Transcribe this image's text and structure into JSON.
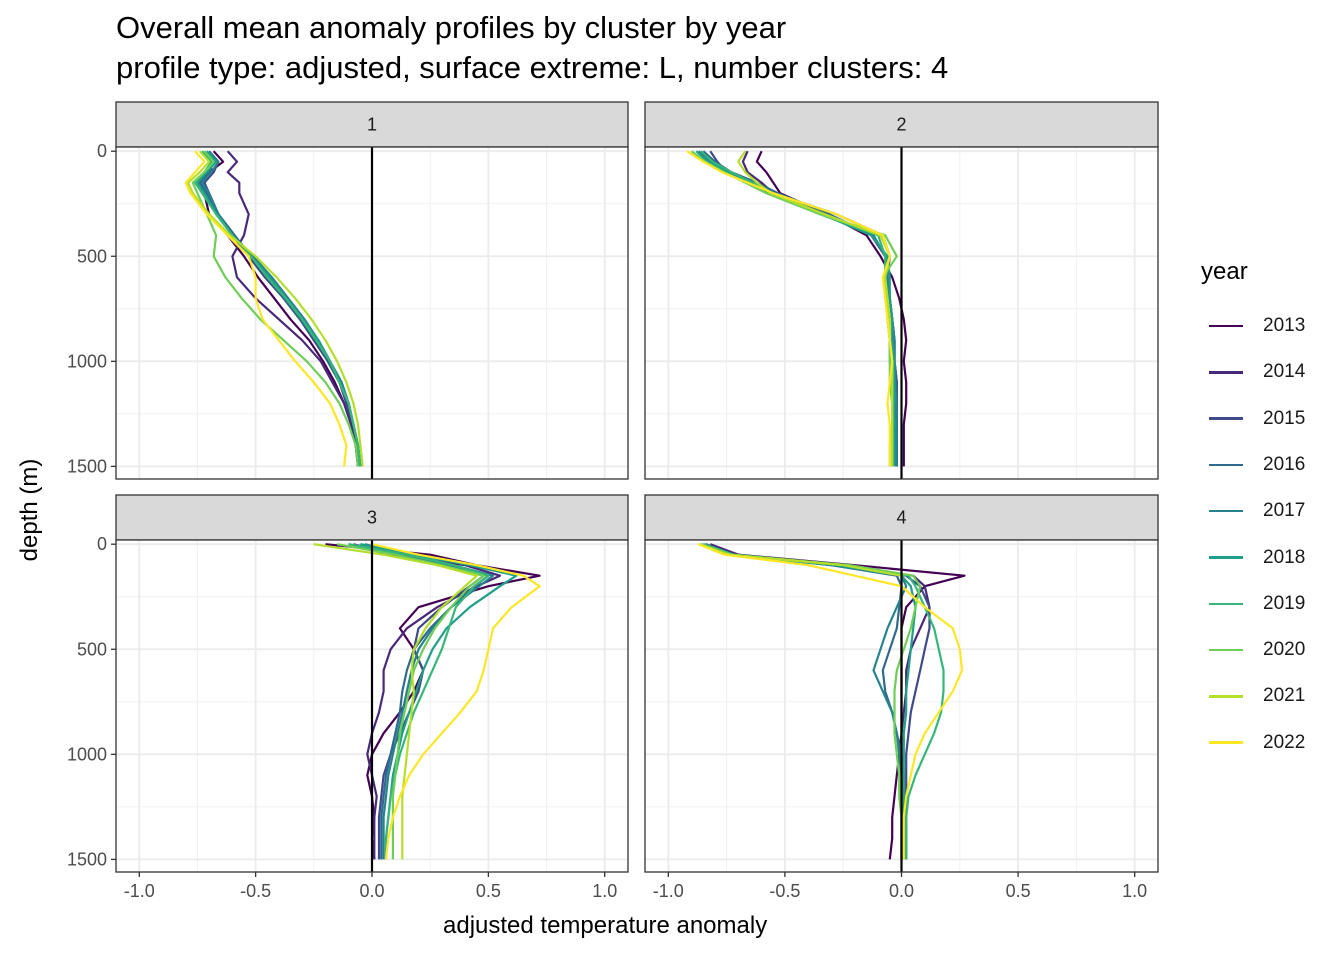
{
  "title": "Overall mean anomaly profiles by cluster by year",
  "subtitle": "profile type: adjusted, surface extreme: L, number clusters: 4",
  "chart_data": {
    "type": "line",
    "facet_by": "cluster",
    "xlabel": "adjusted temperature anomaly",
    "ylabel": "depth (m)",
    "xlim": [
      -1.1,
      1.1
    ],
    "ylim_reversed": [
      -20,
      1560
    ],
    "x_ticks": [
      -1.0,
      -0.5,
      0.0,
      0.5,
      1.0
    ],
    "x_tick_labels": [
      "-1.0",
      "-0.5",
      "0.0",
      "0.5",
      "1.0"
    ],
    "y_ticks": [
      0,
      500,
      1000,
      1500
    ],
    "y_tick_labels": [
      "0",
      "500",
      "1000",
      "1500"
    ],
    "depths": [
      0,
      50,
      100,
      150,
      200,
      300,
      400,
      500,
      600,
      700,
      800,
      900,
      1000,
      1100,
      1200,
      1300,
      1400,
      1500
    ],
    "grid": true,
    "reference_line_x": 0,
    "legend": {
      "title": "year",
      "position": "right"
    },
    "colors": {
      "2013": "#440154",
      "2014": "#482878",
      "2015": "#3e4a89",
      "2016": "#31688e",
      "2017": "#26828e",
      "2018": "#1f9e89",
      "2019": "#35b779",
      "2020": "#6ece58",
      "2021": "#b5de2b",
      "2022": "#fde725"
    },
    "panels": [
      {
        "label": "1",
        "series": [
          {
            "name": "2013",
            "x": [
              -0.68,
              -0.64,
              -0.7,
              -0.74,
              -0.72,
              -0.7,
              -0.62,
              -0.55,
              -0.49,
              -0.42,
              -0.35,
              -0.27,
              -0.21,
              -0.16,
              -0.12,
              -0.09,
              -0.07,
              -0.06
            ]
          },
          {
            "name": "2014",
            "x": [
              -0.62,
              -0.58,
              -0.62,
              -0.57,
              -0.57,
              -0.53,
              -0.55,
              -0.6,
              -0.58,
              -0.5,
              -0.4,
              -0.3,
              -0.22,
              -0.17,
              -0.12,
              -0.09,
              -0.07,
              -0.06
            ]
          },
          {
            "name": "2015",
            "x": [
              -0.7,
              -0.66,
              -0.68,
              -0.72,
              -0.7,
              -0.66,
              -0.6,
              -0.53,
              -0.46,
              -0.38,
              -0.31,
              -0.25,
              -0.19,
              -0.14,
              -0.11,
              -0.08,
              -0.06,
              -0.05
            ]
          },
          {
            "name": "2016",
            "x": [
              -0.72,
              -0.68,
              -0.7,
              -0.74,
              -0.71,
              -0.66,
              -0.59,
              -0.52,
              -0.45,
              -0.38,
              -0.31,
              -0.24,
              -0.19,
              -0.14,
              -0.1,
              -0.08,
              -0.06,
              -0.05
            ]
          },
          {
            "name": "2017",
            "x": [
              -0.7,
              -0.66,
              -0.69,
              -0.73,
              -0.7,
              -0.66,
              -0.6,
              -0.51,
              -0.43,
              -0.36,
              -0.29,
              -0.23,
              -0.18,
              -0.13,
              -0.1,
              -0.08,
              -0.06,
              -0.05
            ]
          },
          {
            "name": "2018",
            "x": [
              -0.71,
              -0.67,
              -0.71,
              -0.75,
              -0.72,
              -0.67,
              -0.6,
              -0.52,
              -0.44,
              -0.37,
              -0.3,
              -0.23,
              -0.18,
              -0.14,
              -0.1,
              -0.08,
              -0.06,
              -0.05
            ]
          },
          {
            "name": "2019",
            "x": [
              -0.73,
              -0.69,
              -0.72,
              -0.76,
              -0.73,
              -0.67,
              -0.6,
              -0.52,
              -0.45,
              -0.37,
              -0.3,
              -0.24,
              -0.18,
              -0.14,
              -0.1,
              -0.08,
              -0.06,
              -0.05
            ]
          },
          {
            "name": "2020",
            "x": [
              -0.72,
              -0.68,
              -0.72,
              -0.77,
              -0.75,
              -0.71,
              -0.67,
              -0.68,
              -0.63,
              -0.56,
              -0.48,
              -0.38,
              -0.28,
              -0.2,
              -0.14,
              -0.1,
              -0.07,
              -0.06
            ]
          },
          {
            "name": "2021",
            "x": [
              -0.74,
              -0.7,
              -0.74,
              -0.79,
              -0.77,
              -0.7,
              -0.61,
              -0.5,
              -0.41,
              -0.33,
              -0.26,
              -0.2,
              -0.15,
              -0.11,
              -0.08,
              -0.06,
              -0.05,
              -0.04
            ]
          },
          {
            "name": "2022",
            "x": [
              -0.76,
              -0.72,
              -0.76,
              -0.8,
              -0.78,
              -0.71,
              -0.62,
              -0.53,
              -0.5,
              -0.5,
              -0.47,
              -0.4,
              -0.33,
              -0.25,
              -0.18,
              -0.14,
              -0.11,
              -0.12
            ]
          }
        ]
      },
      {
        "label": "2",
        "series": [
          {
            "name": "2013",
            "x": [
              -0.6,
              -0.62,
              -0.58,
              -0.55,
              -0.52,
              -0.32,
              -0.15,
              -0.09,
              -0.04,
              -0.01,
              0.01,
              0.02,
              0.01,
              0.02,
              0.02,
              0.01,
              0.01,
              0.01
            ]
          },
          {
            "name": "2014",
            "x": [
              -0.66,
              -0.68,
              -0.66,
              -0.6,
              -0.55,
              -0.28,
              -0.08,
              -0.05,
              -0.06,
              -0.05,
              -0.04,
              -0.03,
              -0.03,
              -0.02,
              -0.02,
              -0.03,
              -0.02,
              -0.02
            ]
          },
          {
            "name": "2015",
            "x": [
              -0.82,
              -0.79,
              -0.75,
              -0.66,
              -0.57,
              -0.33,
              -0.13,
              -0.07,
              -0.06,
              -0.05,
              -0.04,
              -0.03,
              -0.03,
              -0.02,
              -0.02,
              -0.02,
              -0.02,
              -0.02
            ]
          },
          {
            "name": "2016",
            "x": [
              -0.85,
              -0.8,
              -0.73,
              -0.62,
              -0.53,
              -0.31,
              -0.12,
              -0.07,
              -0.06,
              -0.05,
              -0.04,
              -0.03,
              -0.03,
              -0.02,
              -0.02,
              -0.02,
              -0.02,
              -0.02
            ]
          },
          {
            "name": "2017",
            "x": [
              -0.87,
              -0.82,
              -0.74,
              -0.63,
              -0.55,
              -0.33,
              -0.12,
              -0.07,
              -0.06,
              -0.05,
              -0.04,
              -0.03,
              -0.03,
              -0.03,
              -0.02,
              -0.02,
              -0.02,
              -0.02
            ]
          },
          {
            "name": "2018",
            "x": [
              -0.88,
              -0.83,
              -0.75,
              -0.65,
              -0.56,
              -0.34,
              -0.13,
              -0.06,
              -0.05,
              -0.05,
              -0.04,
              -0.04,
              -0.03,
              -0.03,
              -0.03,
              -0.03,
              -0.03,
              -0.03
            ]
          },
          {
            "name": "2019",
            "x": [
              -0.86,
              -0.81,
              -0.73,
              -0.64,
              -0.55,
              -0.35,
              -0.1,
              -0.07,
              -0.07,
              -0.06,
              -0.06,
              -0.05,
              -0.05,
              -0.04,
              -0.04,
              -0.04,
              -0.04,
              -0.04
            ]
          },
          {
            "name": "2020",
            "x": [
              -0.9,
              -0.84,
              -0.76,
              -0.67,
              -0.58,
              -0.35,
              -0.07,
              -0.02,
              -0.08,
              -0.06,
              -0.06,
              -0.05,
              -0.05,
              -0.05,
              -0.04,
              -0.04,
              -0.05,
              -0.05
            ]
          },
          {
            "name": "2021",
            "x": [
              -0.67,
              -0.7,
              -0.67,
              -0.62,
              -0.56,
              -0.33,
              -0.09,
              -0.05,
              -0.07,
              -0.06,
              -0.05,
              -0.05,
              -0.04,
              -0.04,
              -0.04,
              -0.04,
              -0.04,
              -0.04
            ]
          },
          {
            "name": "2022",
            "x": [
              -0.92,
              -0.85,
              -0.77,
              -0.66,
              -0.55,
              -0.28,
              -0.08,
              -0.05,
              -0.08,
              -0.07,
              -0.06,
              -0.05,
              -0.04,
              -0.05,
              -0.06,
              -0.05,
              -0.05,
              -0.05
            ]
          }
        ]
      },
      {
        "label": "3",
        "series": [
          {
            "name": "2013",
            "x": [
              -0.2,
              0.25,
              0.45,
              0.72,
              0.5,
              0.2,
              0.12,
              0.18,
              0.22,
              0.18,
              0.12,
              0.05,
              0.0,
              -0.02,
              0.0,
              0.01,
              0.0,
              0.01
            ]
          },
          {
            "name": "2014",
            "x": [
              -0.1,
              0.08,
              0.4,
              0.55,
              0.45,
              0.28,
              0.15,
              0.08,
              0.05,
              0.05,
              0.03,
              0.0,
              -0.02,
              0.0,
              0.02,
              0.01,
              0.01,
              0.01
            ]
          },
          {
            "name": "2015",
            "x": [
              -0.08,
              0.1,
              0.3,
              0.48,
              0.42,
              0.3,
              0.2,
              0.18,
              0.22,
              0.2,
              0.16,
              0.12,
              0.08,
              0.05,
              0.04,
              0.03,
              0.03,
              0.03
            ]
          },
          {
            "name": "2016",
            "x": [
              -0.05,
              0.12,
              0.32,
              0.5,
              0.44,
              0.34,
              0.25,
              0.18,
              0.15,
              0.13,
              0.12,
              0.1,
              0.08,
              0.06,
              0.05,
              0.04,
              0.04,
              0.04
            ]
          },
          {
            "name": "2017",
            "x": [
              -0.03,
              0.15,
              0.35,
              0.52,
              0.46,
              0.34,
              0.26,
              0.2,
              0.17,
              0.15,
              0.13,
              0.11,
              0.09,
              0.07,
              0.06,
              0.05,
              0.05,
              0.05
            ]
          },
          {
            "name": "2018",
            "x": [
              -0.05,
              0.18,
              0.42,
              0.62,
              0.55,
              0.42,
              0.32,
              0.26,
              0.22,
              0.19,
              0.16,
              0.13,
              0.11,
              0.09,
              0.08,
              0.07,
              0.06,
              0.06
            ]
          },
          {
            "name": "2019",
            "x": [
              -0.1,
              0.15,
              0.35,
              0.5,
              0.44,
              0.36,
              0.33,
              0.3,
              0.26,
              0.22,
              0.18,
              0.15,
              0.12,
              0.1,
              0.08,
              0.07,
              0.06,
              0.06
            ]
          },
          {
            "name": "2020",
            "x": [
              -0.15,
              0.1,
              0.3,
              0.48,
              0.42,
              0.34,
              0.27,
              0.22,
              0.18,
              0.16,
              0.14,
              0.12,
              0.11,
              0.1,
              0.09,
              0.09,
              0.09,
              0.09
            ]
          },
          {
            "name": "2021",
            "x": [
              -0.25,
              0.05,
              0.28,
              0.45,
              0.4,
              0.3,
              0.23,
              0.18,
              0.17,
              0.18,
              0.17,
              0.16,
              0.15,
              0.14,
              0.13,
              0.13,
              0.13,
              0.13
            ]
          },
          {
            "name": "2022",
            "x": [
              0.0,
              0.2,
              0.45,
              0.65,
              0.72,
              0.6,
              0.52,
              0.5,
              0.48,
              0.45,
              0.38,
              0.3,
              0.22,
              0.16,
              0.12,
              0.09,
              0.07,
              0.06
            ]
          }
        ]
      },
      {
        "label": "4",
        "series": [
          {
            "name": "2013",
            "x": [
              -0.85,
              -0.7,
              -0.2,
              0.27,
              0.1,
              0.02,
              0.0,
              0.0,
              0.0,
              0.0,
              0.0,
              0.0,
              -0.01,
              -0.02,
              -0.03,
              -0.04,
              -0.04,
              -0.05
            ]
          },
          {
            "name": "2014",
            "x": [
              -0.82,
              -0.7,
              -0.3,
              0.05,
              0.1,
              0.12,
              0.08,
              0.04,
              0.02,
              0.02,
              0.01,
              0.0,
              0.0,
              0.0,
              0.01,
              0.01,
              0.01,
              0.01
            ]
          },
          {
            "name": "2015",
            "x": [
              -0.84,
              -0.72,
              -0.25,
              0.02,
              0.08,
              0.12,
              0.12,
              0.1,
              0.08,
              0.06,
              0.04,
              0.03,
              0.02,
              0.02,
              0.02,
              0.02,
              0.02,
              0.02
            ]
          },
          {
            "name": "2016",
            "x": [
              -0.84,
              -0.72,
              -0.3,
              -0.02,
              0.0,
              -0.01,
              -0.02,
              -0.05,
              -0.08,
              -0.07,
              -0.04,
              -0.02,
              0.0,
              0.01,
              0.01,
              0.01,
              0.01,
              0.01
            ]
          },
          {
            "name": "2017",
            "x": [
              -0.85,
              -0.73,
              -0.3,
              0.0,
              0.02,
              -0.02,
              -0.06,
              -0.09,
              -0.12,
              -0.08,
              -0.04,
              -0.02,
              -0.01,
              0.0,
              0.0,
              0.0,
              0.0,
              0.0
            ]
          },
          {
            "name": "2018",
            "x": [
              -0.86,
              -0.74,
              -0.28,
              0.0,
              0.04,
              0.06,
              0.05,
              0.04,
              0.03,
              0.02,
              0.02,
              0.01,
              0.01,
              0.01,
              0.01,
              0.01,
              0.01,
              0.01
            ]
          },
          {
            "name": "2019",
            "x": [
              -0.85,
              -0.72,
              -0.25,
              0.03,
              0.06,
              0.1,
              0.14,
              0.16,
              0.18,
              0.18,
              0.17,
              0.14,
              0.1,
              0.06,
              0.03,
              0.02,
              0.02,
              0.02
            ]
          },
          {
            "name": "2020",
            "x": [
              -0.86,
              -0.73,
              -0.22,
              0.05,
              0.08,
              0.06,
              0.04,
              0.01,
              -0.02,
              -0.03,
              -0.03,
              -0.03,
              -0.02,
              -0.01,
              -0.01,
              0.0,
              0.0,
              0.0
            ]
          },
          {
            "name": "2021",
            "x": [
              -0.87,
              -0.74,
              -0.25,
              0.0,
              0.0,
              0.0,
              0.0,
              0.0,
              0.0,
              0.0,
              0.0,
              0.0,
              0.0,
              0.0,
              0.0,
              0.0,
              0.0,
              0.0
            ]
          },
          {
            "name": "2022",
            "x": [
              -0.87,
              -0.76,
              -0.4,
              -0.2,
              0.0,
              0.1,
              0.22,
              0.25,
              0.26,
              0.22,
              0.16,
              0.1,
              0.06,
              0.04,
              0.02,
              0.01,
              0.01,
              0.01
            ]
          }
        ]
      }
    ]
  }
}
